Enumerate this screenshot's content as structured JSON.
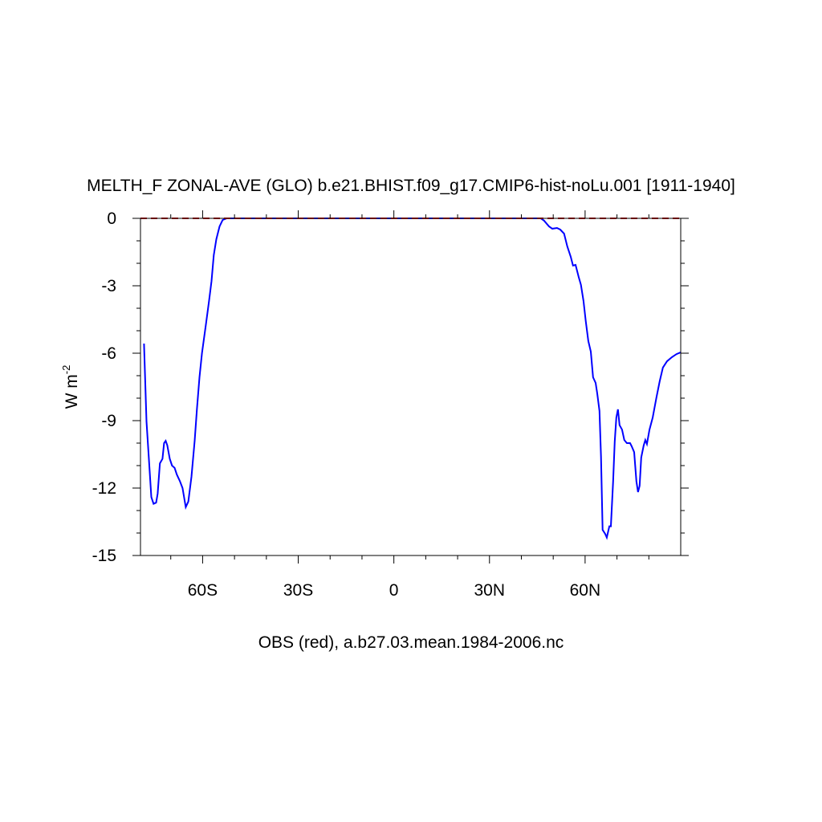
{
  "chart_data": {
    "type": "line",
    "title": "MELTH_F ZONAL-AVE (GLO) b.e21.BHIST.f09_g17.CMIP6-hist-noLu.001 [1911-1940]",
    "ylabel": {
      "text": "W m",
      "sup": "-2"
    },
    "caption": "OBS (red), a.b27.03.mean.1984-2006.nc",
    "xlim": [
      -79.5,
      90
    ],
    "ylim": [
      -15,
      0
    ],
    "xticks": [
      {
        "value": -60,
        "label": "60S"
      },
      {
        "value": -30,
        "label": "30S"
      },
      0,
      {
        "value": 30,
        "label": "30N"
      },
      {
        "value": 60,
        "label": "60N"
      }
    ],
    "xminor_ticks": [
      -70,
      -50,
      -40,
      -20,
      -10,
      10,
      20,
      40,
      50,
      70,
      80
    ],
    "yticks": [
      0,
      -3,
      -6,
      -9,
      -12,
      -15
    ],
    "yminor_ticks": [
      -1,
      -2,
      -4,
      -5,
      -7,
      -8,
      -10,
      -11,
      -13,
      -14
    ],
    "series": [
      {
        "color": "#0000ff",
        "dash": false,
        "x": [
          -78.4,
          -77.6,
          -76.1,
          -75.4,
          -74.6,
          -74.1,
          -73.4,
          -72.6,
          -72.1,
          -71.6,
          -71.1,
          -70.3,
          -69.6,
          -68.8,
          -68.1,
          -67.1,
          -66.3,
          -65.3,
          -64.5,
          -63.5,
          -62.5,
          -61.8,
          -61.0,
          -60.2,
          -59.0,
          -58.0,
          -57.2,
          -56.5,
          -55.7,
          -54.7,
          -53.7,
          -52.4,
          46.1,
          47.1,
          48.7,
          49.7,
          51.2,
          52.2,
          53.4,
          54.4,
          55.5,
          56.2,
          57.0,
          58.0,
          58.7,
          59.5,
          60.2,
          61.0,
          61.8,
          62.5,
          63.3,
          63.8,
          64.5,
          65.0,
          65.5,
          66.3,
          66.8,
          67.6,
          68.1,
          68.8,
          69.3,
          69.8,
          70.3,
          70.8,
          71.6,
          72.3,
          73.1,
          74.1,
          74.6,
          75.4,
          76.1,
          76.6,
          77.1,
          77.6,
          78.4,
          78.9,
          79.4,
          80.2,
          81.2,
          82.4,
          83.4,
          84.4,
          85.7,
          87.2,
          88.7,
          90.0
        ],
        "values": [
          -5.57,
          -9.04,
          -12.4,
          -12.7,
          -12.65,
          -12.25,
          -10.9,
          -10.7,
          -10.0,
          -9.9,
          -10.1,
          -10.7,
          -11.0,
          -11.1,
          -11.4,
          -11.7,
          -12.0,
          -12.85,
          -12.6,
          -11.5,
          -9.9,
          -8.5,
          -7.07,
          -6.0,
          -4.75,
          -3.68,
          -2.79,
          -1.64,
          -0.93,
          -0.36,
          -0.07,
          0,
          0,
          -0.1,
          -0.36,
          -0.46,
          -0.43,
          -0.5,
          -0.68,
          -1.25,
          -1.71,
          -2.1,
          -2.07,
          -2.61,
          -2.96,
          -3.68,
          -4.57,
          -5.46,
          -5.93,
          -7.07,
          -7.32,
          -7.79,
          -8.57,
          -10.6,
          -13.86,
          -14.04,
          -14.2,
          -13.7,
          -13.7,
          -11.7,
          -9.93,
          -8.86,
          -8.5,
          -9.2,
          -9.4,
          -9.86,
          -10.0,
          -10.0,
          -10.14,
          -10.4,
          -11.7,
          -12.18,
          -11.9,
          -10.64,
          -10.1,
          -9.86,
          -10.04,
          -9.4,
          -8.86,
          -7.96,
          -7.25,
          -6.64,
          -6.36,
          -6.18,
          -6.04,
          -5.96
        ]
      },
      {
        "color": "#cc0000",
        "dash": true,
        "x": [
          -79.5,
          90
        ],
        "values": [
          0,
          0
        ]
      }
    ]
  }
}
